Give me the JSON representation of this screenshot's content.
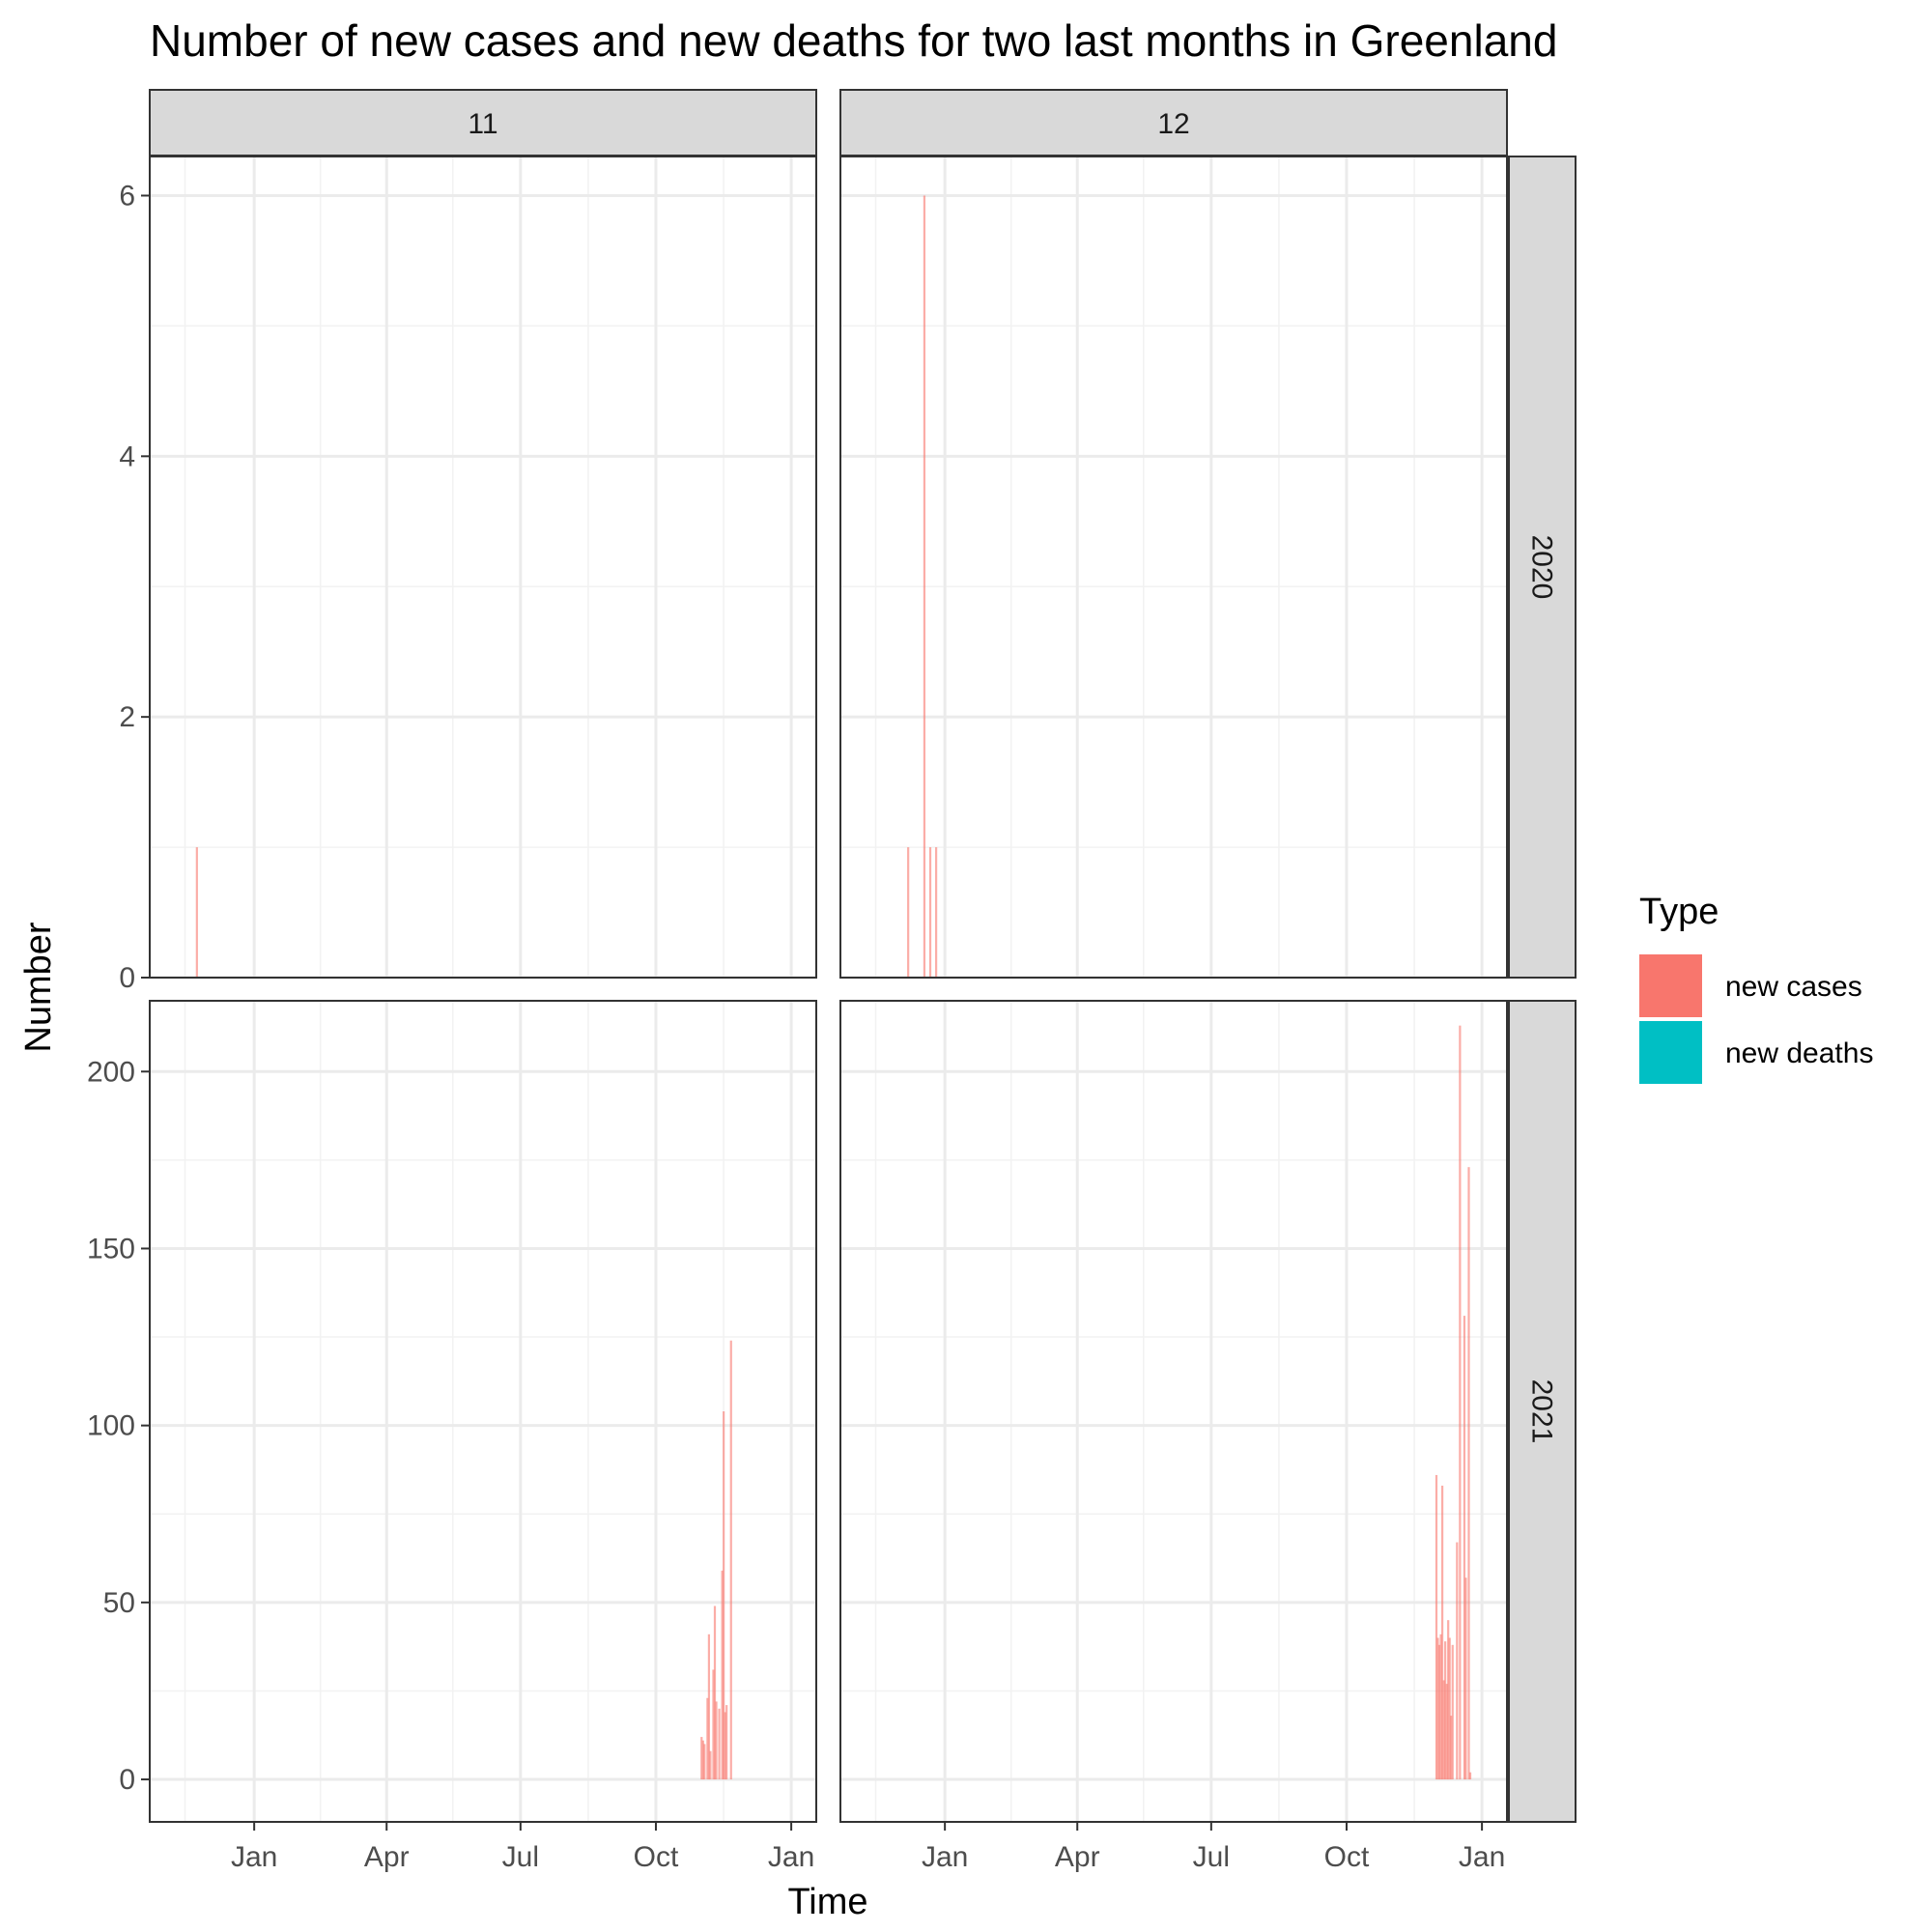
{
  "chart_data": {
    "type": "bar",
    "title": "Number of new cases and new deaths for two last months in Greenland",
    "xlabel": "Time",
    "ylabel": "Number",
    "legend": {
      "title": "Type",
      "placement": "right",
      "entries": [
        {
          "name": "new cases",
          "color": "#F8766D"
        },
        {
          "name": "new deaths",
          "color": "#00BFC4"
        }
      ]
    },
    "column_facets": [
      "11",
      "12"
    ],
    "row_facets": [
      "2020",
      "2021"
    ],
    "x_ticks": [
      "Jan",
      "Apr",
      "Jul",
      "Oct",
      "Jan"
    ],
    "grid": true,
    "rows": [
      {
        "label": "2020",
        "ylim": [
          0,
          6.3
        ],
        "y_ticks": [
          0,
          2,
          4,
          6
        ],
        "panels": [
          {
            "column": "11",
            "series": [
              {
                "name": "new cases",
                "points": [
                  {
                    "date": "2020-11-23",
                    "value": 1
                  }
                ]
              },
              {
                "name": "new deaths",
                "points": []
              }
            ]
          },
          {
            "column": "12",
            "series": [
              {
                "name": "new cases",
                "points": [
                  {
                    "date": "2020-12-07",
                    "value": 1
                  },
                  {
                    "date": "2020-12-18",
                    "value": 6
                  },
                  {
                    "date": "2020-12-22",
                    "value": 1
                  },
                  {
                    "date": "2020-12-26",
                    "value": 1
                  }
                ]
              },
              {
                "name": "new deaths",
                "points": []
              }
            ]
          }
        ]
      },
      {
        "label": "2021",
        "ylim": [
          -12,
          220
        ],
        "y_ticks": [
          0,
          50,
          100,
          150,
          200
        ],
        "panels": [
          {
            "column": "11",
            "series": [
              {
                "name": "new cases",
                "points": [
                  {
                    "date": "2021-11-01",
                    "value": 12
                  },
                  {
                    "date": "2021-11-02",
                    "value": 11
                  },
                  {
                    "date": "2021-11-03",
                    "value": 10
                  },
                  {
                    "date": "2021-11-05",
                    "value": 23
                  },
                  {
                    "date": "2021-11-06",
                    "value": 41
                  },
                  {
                    "date": "2021-11-07",
                    "value": 8
                  },
                  {
                    "date": "2021-11-09",
                    "value": 31
                  },
                  {
                    "date": "2021-11-10",
                    "value": 49
                  },
                  {
                    "date": "2021-11-11",
                    "value": 22
                  },
                  {
                    "date": "2021-11-13",
                    "value": 20
                  },
                  {
                    "date": "2021-11-15",
                    "value": 59
                  },
                  {
                    "date": "2021-11-16",
                    "value": 104
                  },
                  {
                    "date": "2021-11-17",
                    "value": 19
                  },
                  {
                    "date": "2021-11-18",
                    "value": 21
                  },
                  {
                    "date": "2021-11-21",
                    "value": 124
                  }
                ]
              },
              {
                "name": "new deaths",
                "points": []
              }
            ]
          },
          {
            "column": "12",
            "series": [
              {
                "name": "new cases",
                "points": [
                  {
                    "date": "2021-12-01",
                    "value": 86
                  },
                  {
                    "date": "2021-12-02",
                    "value": 40
                  },
                  {
                    "date": "2021-12-03",
                    "value": 38
                  },
                  {
                    "date": "2021-12-04",
                    "value": 41
                  },
                  {
                    "date": "2021-12-05",
                    "value": 83
                  },
                  {
                    "date": "2021-12-06",
                    "value": 28
                  },
                  {
                    "date": "2021-12-07",
                    "value": 39
                  },
                  {
                    "date": "2021-12-08",
                    "value": 27
                  },
                  {
                    "date": "2021-12-09",
                    "value": 45
                  },
                  {
                    "date": "2021-12-10",
                    "value": 40
                  },
                  {
                    "date": "2021-12-11",
                    "value": 18
                  },
                  {
                    "date": "2021-12-12",
                    "value": 38
                  },
                  {
                    "date": "2021-12-15",
                    "value": 67
                  },
                  {
                    "date": "2021-12-17",
                    "value": 213
                  },
                  {
                    "date": "2021-12-20",
                    "value": 131
                  },
                  {
                    "date": "2021-12-21",
                    "value": 57
                  },
                  {
                    "date": "2021-12-23",
                    "value": 173
                  },
                  {
                    "date": "2021-12-24",
                    "value": 2
                  }
                ]
              },
              {
                "name": "new deaths",
                "points": []
              }
            ]
          }
        ]
      }
    ]
  }
}
